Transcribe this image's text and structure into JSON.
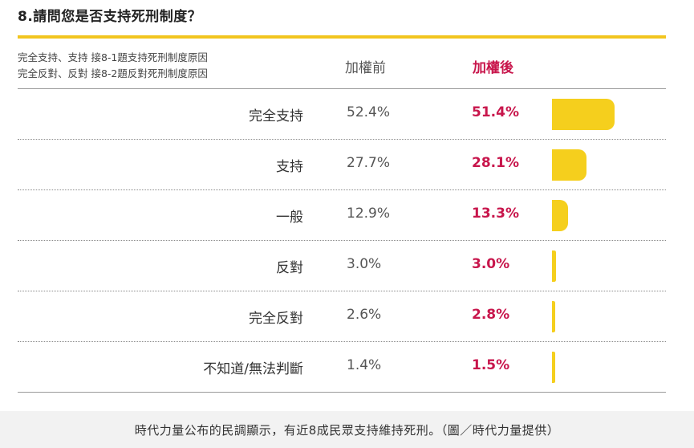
{
  "title": "8.請問您是否支持死刑制度？",
  "notes": [
    "完全支持、支持 接8-1題支持死刑制度原因",
    "完全反對、反對 接8-2題反對死刑制度原因"
  ],
  "colors": {
    "accent": "#f2c51f",
    "bar": "#f5cf1d",
    "after_text": "#c8164c"
  },
  "chart_data": {
    "type": "table",
    "columns": [
      "加權前",
      "加權後"
    ],
    "rows": [
      {
        "label": "完全支持",
        "before": "52.4%",
        "after": "51.4%",
        "after_value": 51.4
      },
      {
        "label": "支持",
        "before": "27.7%",
        "after": "28.1%",
        "after_value": 28.1
      },
      {
        "label": "一般",
        "before": "12.9%",
        "after": "13.3%",
        "after_value": 13.3
      },
      {
        "label": "反對",
        "before": "3.0%",
        "after": "3.0%",
        "after_value": 3.0
      },
      {
        "label": "完全反對",
        "before": "2.6%",
        "after": "2.8%",
        "after_value": 2.8
      },
      {
        "label": "不知道/無法判斷",
        "before": "1.4%",
        "after": "1.5%",
        "after_value": 1.5
      }
    ]
  },
  "caption": "時代力量公布的民調顯示，有近8成民眾支持維持死刑。（圖／時代力量提供）"
}
